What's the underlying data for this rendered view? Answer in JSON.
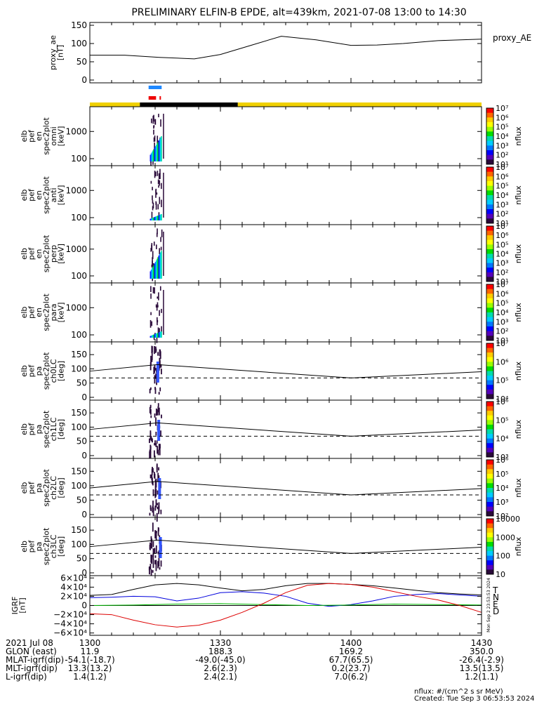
{
  "title": "PRELIMINARY ELFIN-B EPDE, alt=439km, 2021-07-08 13:00 to 14:30",
  "colors": {
    "ae_line": "#000000",
    "bar_blue": "#1e88ff",
    "bar_red": "#ee0000",
    "orbit_yellow": "#f0d000",
    "orbit_black": "#000000",
    "flux_dark": "#2a0a3a",
    "T": "#000000",
    "N": "#0000dd",
    "E": "#00bb00",
    "D": "#dd0000"
  },
  "ae_panel": {
    "ylabel_lines": [
      "proxy_ae",
      "[nT]"
    ],
    "yticks": [
      "150",
      "100",
      "50",
      "0"
    ],
    "ylim": [
      0,
      150
    ],
    "legend": "proxy_AE"
  },
  "spectrum_panels": [
    {
      "ylabel_lines": [
        "elb",
        "pef",
        "en",
        "spec2plot",
        "omni",
        "[keV]"
      ],
      "yticks": [
        "1000",
        "100"
      ],
      "cb_ticks": [
        "10⁷",
        "10⁶",
        "10⁵",
        "10⁴",
        "10³",
        "10²",
        "10¹"
      ],
      "cb_label": "nflux"
    },
    {
      "ylabel_lines": [
        "elb",
        "pef",
        "en",
        "spec2plot",
        "anti",
        "[keV]"
      ],
      "yticks": [
        "1000",
        "100"
      ],
      "cb_ticks": [
        "10⁷",
        "10⁶",
        "10⁵",
        "10⁴",
        "10³",
        "10²",
        "10¹"
      ],
      "cb_label": "nflux"
    },
    {
      "ylabel_lines": [
        "elb",
        "pef",
        "en",
        "spec2plot",
        "perp",
        "[keV]"
      ],
      "yticks": [
        "1000",
        "100"
      ],
      "cb_ticks": [
        "10⁷",
        "10⁶",
        "10⁵",
        "10⁴",
        "10³",
        "10²",
        "10¹"
      ],
      "cb_label": "nflux"
    },
    {
      "ylabel_lines": [
        "elb",
        "pef",
        "en",
        "spec2plot",
        "para",
        "[keV]"
      ],
      "yticks": [
        "1000",
        "100"
      ],
      "cb_ticks": [
        "10⁷",
        "10⁶",
        "10⁵",
        "10⁴",
        "10³",
        "10²",
        "10¹"
      ],
      "cb_label": "nflux"
    }
  ],
  "pitch_panels": [
    {
      "ylabel_lines": [
        "elb",
        "pef",
        "pa",
        "spec2plot",
        "ch0LC",
        "[deg]"
      ],
      "yticks": [
        "150",
        "100",
        "50",
        "0"
      ],
      "cb_ticks": [
        "10⁷",
        "10⁶",
        "10⁵",
        "10⁴"
      ],
      "cb_label": "nflux"
    },
    {
      "ylabel_lines": [
        "elb",
        "pef",
        "pa",
        "spec2plot",
        "ch1LC",
        "[deg]"
      ],
      "yticks": [
        "150",
        "100",
        "50",
        "0"
      ],
      "cb_ticks": [
        "10⁶",
        "10⁵",
        "10⁴",
        "10³"
      ],
      "cb_label": "nflux"
    },
    {
      "ylabel_lines": [
        "elb",
        "pef",
        "pa",
        "spec2plot",
        "ch2LC",
        "[deg]"
      ],
      "yticks": [
        "150",
        "100",
        "50",
        "0"
      ],
      "cb_ticks": [
        "10⁶",
        "10⁵",
        "10⁴",
        "10³",
        "10²"
      ],
      "cb_label": "nflux"
    },
    {
      "ylabel_lines": [
        "elb",
        "pef",
        "pa",
        "spec2plot",
        "ch3LC",
        "[deg]"
      ],
      "yticks": [
        "150",
        "100",
        "50",
        "0"
      ],
      "cb_ticks": [
        "10000",
        "1000",
        "100",
        "10"
      ],
      "cb_label": "nflux"
    }
  ],
  "igrf_panel": {
    "ylabel_lines": [
      "IGRF",
      "[nT]"
    ],
    "yticks": [
      "6×10⁴",
      "4×10⁴",
      "2×10⁴",
      "0",
      "−2×10⁴",
      "−4×10⁴",
      "−6×10⁴"
    ],
    "legend": [
      "T",
      "N",
      "E",
      "D"
    ],
    "side_text": "Mon Sep  2 23:53:53 2024"
  },
  "bottom_table": {
    "rows": [
      {
        "label": "2021 Jul 08",
        "values": [
          "1300",
          "1330",
          "1400",
          "1430"
        ]
      },
      {
        "label": "GLON (east)",
        "values": [
          "11.9",
          "188.3",
          "169.2",
          "350.0"
        ]
      },
      {
        "label": "MLAT-igrf(dip)",
        "values": [
          "-54.1(-18.7)",
          "-49.0(-45.0)",
          "67.7(65.5)",
          "-26.4(-2.9)"
        ]
      },
      {
        "label": "MLT-igrf(dip)",
        "values": [
          "13.3(13.2)",
          "2.6(2.3)",
          "0.2(23.7)",
          "13.5(13.5)"
        ]
      },
      {
        "label": "L-igrf(dip)",
        "values": [
          "1.4(1.2)",
          "2.4(2.1)",
          "7.0(6.2)",
          "1.2(1.1)"
        ]
      }
    ]
  },
  "footer": {
    "units": "nflux: #/(cm^2 s sr MeV)",
    "created": "Created: Tue Sep  3 06:53:53 2024"
  },
  "chart_data": {
    "type": "line",
    "x_range": [
      "13:00",
      "14:30"
    ],
    "x_ticks": [
      "1300",
      "1330",
      "1400",
      "1430"
    ],
    "ae": {
      "name": "proxy_AE",
      "x_min": [
        0,
        8,
        16,
        24,
        30,
        37,
        44,
        52,
        60,
        66,
        72,
        80,
        90
      ],
      "values": [
        68,
        68,
        62,
        58,
        70,
        95,
        120,
        110,
        95,
        96,
        100,
        108,
        112
      ],
      "ylim": [
        0,
        150
      ]
    },
    "science_intervals": [
      {
        "color": "blue",
        "start_min": 13.5,
        "end_min": 16.5
      },
      {
        "color": "red",
        "start_min": 13.5,
        "end_min": 16.5
      }
    ],
    "orbit_bar": [
      {
        "color": "yellow",
        "start_min": 0,
        "end_min": 11.5
      },
      {
        "color": "black",
        "start_min": 11.5,
        "end_min": 34
      },
      {
        "color": "yellow",
        "start_min": 34,
        "end_min": 90
      }
    ],
    "loss_cone_deg": {
      "x_min": [
        0,
        15.5,
        60,
        90
      ],
      "solid": [
        92,
        115,
        68,
        90
      ],
      "dashed": [
        68,
        68,
        68,
        68
      ],
      "ylim": [
        0,
        180
      ]
    },
    "igrf": {
      "ylim": [
        -60000,
        60000
      ],
      "series": [
        {
          "name": "T",
          "x_min": [
            0,
            5,
            10,
            15,
            20,
            25,
            30,
            35,
            40,
            45,
            50,
            55,
            60,
            65,
            70,
            75,
            80,
            85,
            90
          ],
          "values": [
            22000,
            24000,
            35000,
            45000,
            48000,
            45000,
            38000,
            32000,
            35000,
            43000,
            48000,
            48000,
            46000,
            43000,
            38000,
            33000,
            28000,
            25000,
            23000
          ]
        },
        {
          "name": "N",
          "x_min": [
            0,
            5,
            10,
            15,
            20,
            25,
            30,
            35,
            40,
            45,
            50,
            55,
            60,
            65,
            70,
            75,
            80,
            85,
            90
          ],
          "values": [
            17000,
            18000,
            20000,
            19000,
            10000,
            16000,
            28000,
            30000,
            27000,
            20000,
            5000,
            -2000,
            2000,
            10000,
            20000,
            24000,
            26000,
            23000,
            20000
          ]
        },
        {
          "name": "E",
          "x_min": [
            0,
            10,
            20,
            30,
            40,
            50,
            60,
            70,
            80,
            90
          ],
          "values": [
            0,
            1000,
            3000,
            4000,
            2000,
            0,
            1000,
            3000,
            2000,
            1000
          ]
        },
        {
          "name": "D",
          "x_min": [
            0,
            5,
            10,
            15,
            20,
            25,
            30,
            35,
            40,
            45,
            50,
            55,
            60,
            65,
            70,
            75,
            80,
            85,
            90
          ],
          "values": [
            -18000,
            -20000,
            -32000,
            -42000,
            -47000,
            -43000,
            -32000,
            -15000,
            5000,
            28000,
            44000,
            48000,
            46000,
            40000,
            30000,
            20000,
            12000,
            0,
            -15000
          ]
        }
      ]
    }
  }
}
